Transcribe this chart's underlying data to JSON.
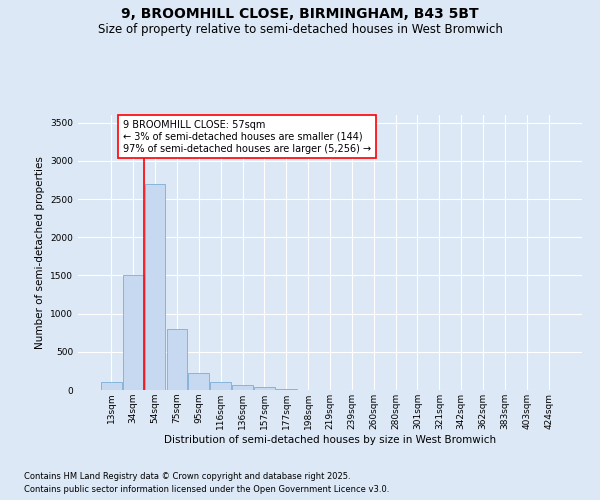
{
  "title": "9, BROOMHILL CLOSE, BIRMINGHAM, B43 5BT",
  "subtitle": "Size of property relative to semi-detached houses in West Bromwich",
  "xlabel": "Distribution of semi-detached houses by size in West Bromwich",
  "ylabel": "Number of semi-detached properties",
  "footer_line1": "Contains HM Land Registry data © Crown copyright and database right 2025.",
  "footer_line2": "Contains public sector information licensed under the Open Government Licence v3.0.",
  "bar_labels": [
    "13sqm",
    "34sqm",
    "54sqm",
    "75sqm",
    "95sqm",
    "116sqm",
    "136sqm",
    "157sqm",
    "177sqm",
    "198sqm",
    "219sqm",
    "239sqm",
    "260sqm",
    "280sqm",
    "301sqm",
    "321sqm",
    "342sqm",
    "362sqm",
    "383sqm",
    "403sqm",
    "424sqm"
  ],
  "bar_values": [
    100,
    1500,
    2700,
    800,
    220,
    100,
    60,
    40,
    15,
    5,
    2,
    1,
    0,
    0,
    0,
    0,
    0,
    0,
    0,
    0,
    0
  ],
  "bar_color": "#c6d9f0",
  "bar_edge_color": "#7aadd4",
  "red_line_x": 1.5,
  "property_label": "9 BROOMHILL CLOSE: 57sqm",
  "annotation_line1": "← 3% of semi-detached houses are smaller (144)",
  "annotation_line2": "97% of semi-detached houses are larger (5,256) →",
  "ylim": [
    0,
    3600
  ],
  "yticks": [
    0,
    500,
    1000,
    1500,
    2000,
    2500,
    3000,
    3500
  ],
  "bg_color": "#dce8f5",
  "plot_bg_color": "#dce8f5",
  "grid_color": "#ffffff",
  "title_fontsize": 10,
  "subtitle_fontsize": 8.5,
  "axis_label_fontsize": 7.5,
  "tick_fontsize": 6.5,
  "annotation_fontsize": 7,
  "footer_fontsize": 6
}
